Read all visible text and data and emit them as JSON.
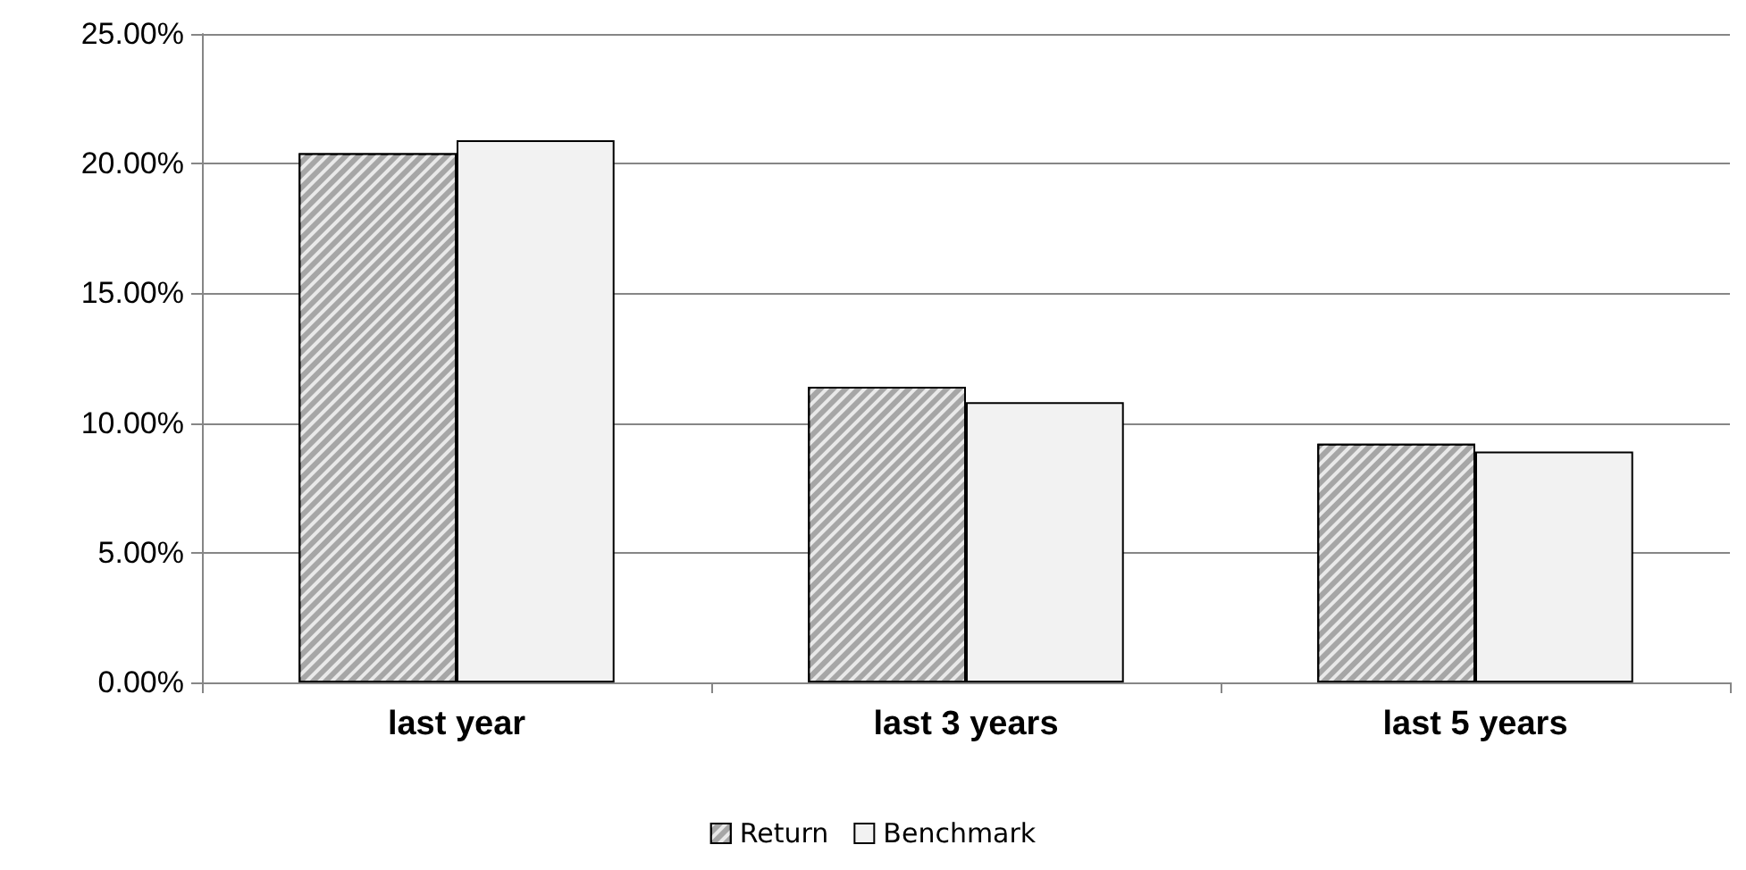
{
  "chart_data": {
    "type": "bar",
    "categories": [
      "last year",
      "last 3 years",
      "last 5 years"
    ],
    "series": [
      {
        "name": "Return",
        "color": "#a6a6a6",
        "values": [
          20.4,
          11.4,
          9.2
        ]
      },
      {
        "name": "Benchmark",
        "color": "#f2f2f2",
        "values": [
          20.9,
          10.8,
          8.9
        ]
      }
    ],
    "ylim": [
      0,
      25
    ],
    "yticks": [
      {
        "value": 0,
        "label": "0.00%"
      },
      {
        "value": 5,
        "label": "5.00%"
      },
      {
        "value": 10,
        "label": "10.00%"
      },
      {
        "value": 15,
        "label": "15.00%"
      },
      {
        "value": 20,
        "label": "20.00%"
      },
      {
        "value": 25,
        "label": "25.00%"
      }
    ],
    "grid": "y",
    "legend": "bottom"
  }
}
